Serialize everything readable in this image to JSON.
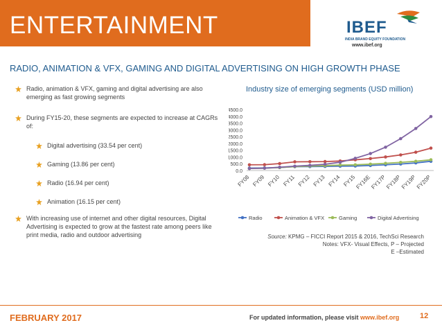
{
  "header": {
    "title": "ENTERTAINMENT",
    "logo_text": "IBEF",
    "logo_tagline": "INDIA BRAND EQUITY FOUNDATION",
    "logo_url": "www.ibef.org"
  },
  "subtitle": "RADIO, ANIMATION & VFX, GAMING AND DIGITAL ADVERTISING ON HIGH GROWTH PHASE",
  "bullets": {
    "b1": "Radio, animation & VFX, gaming and digital advertising are also emerging as fast growing segments",
    "b2": "During FY15-20, these segments are expected to increase at CAGRs of:",
    "sub1": "Digital advertising (33.54 per cent)",
    "sub2": "Gaming (13.86 per cent)",
    "sub3": "Radio (16.94 per cent)",
    "sub4": "Animation (16.15 per cent)",
    "b3": "With increasing use of internet and other digital resources, Digital Advertising is expected to grow at the fastest rate among peers like print media, radio and outdoor advertising"
  },
  "chart_data": {
    "type": "line",
    "title": "Industry size of emerging segments (USD million)",
    "x": [
      "FY08",
      "FY09",
      "FY10",
      "FY11",
      "FY12",
      "FY13",
      "FY14",
      "FY15",
      "FY16E",
      "FY17P",
      "FY18P",
      "FY19P",
      "FY20P"
    ],
    "ylim": [
      0,
      4500
    ],
    "yticks": [
      "0.0",
      "500.0",
      "1000.0",
      "1500.0",
      "2000.0",
      "2500.0",
      "3000.0",
      "3500.0",
      "4000.0",
      "4500.0"
    ],
    "grid": false,
    "legend_position": "bottom",
    "series": [
      {
        "name": "Radio",
        "color": "#4472c4",
        "values": [
          180,
          190,
          220,
          280,
          290,
          300,
          320,
          330,
          370,
          420,
          480,
          560,
          680
        ]
      },
      {
        "name": "Animation & VFX",
        "color": "#c0504d",
        "values": [
          420,
          430,
          510,
          640,
          650,
          660,
          700,
          790,
          880,
          1000,
          1150,
          1350,
          1650
        ]
      },
      {
        "name": "Gaming",
        "color": "#9bbb59",
        "values": [
          150,
          170,
          220,
          290,
          330,
          360,
          400,
          420,
          470,
          530,
          600,
          680,
          790
        ]
      },
      {
        "name": "Digital Advertising",
        "color": "#8064a2",
        "values": [
          150,
          170,
          240,
          320,
          380,
          460,
          610,
          900,
          1250,
          1720,
          2350,
          3100,
          3980
        ]
      }
    ]
  },
  "source": {
    "label": "Source:",
    "text": "KPMG – FICCI Report 2015 & 2016, TechSci Research",
    "notes1": "Notes: VFX- Visual Effects, P – Projected",
    "notes2": "E –Estimated"
  },
  "footer": {
    "date": "FEBRUARY 2017",
    "info_prefix": "For updated information, please visit",
    "info_url": "www.ibef.org",
    "page": "12"
  },
  "colors": {
    "accent": "#e06c1e",
    "brand_blue": "#1f5b8e",
    "star": "#e8a020"
  }
}
